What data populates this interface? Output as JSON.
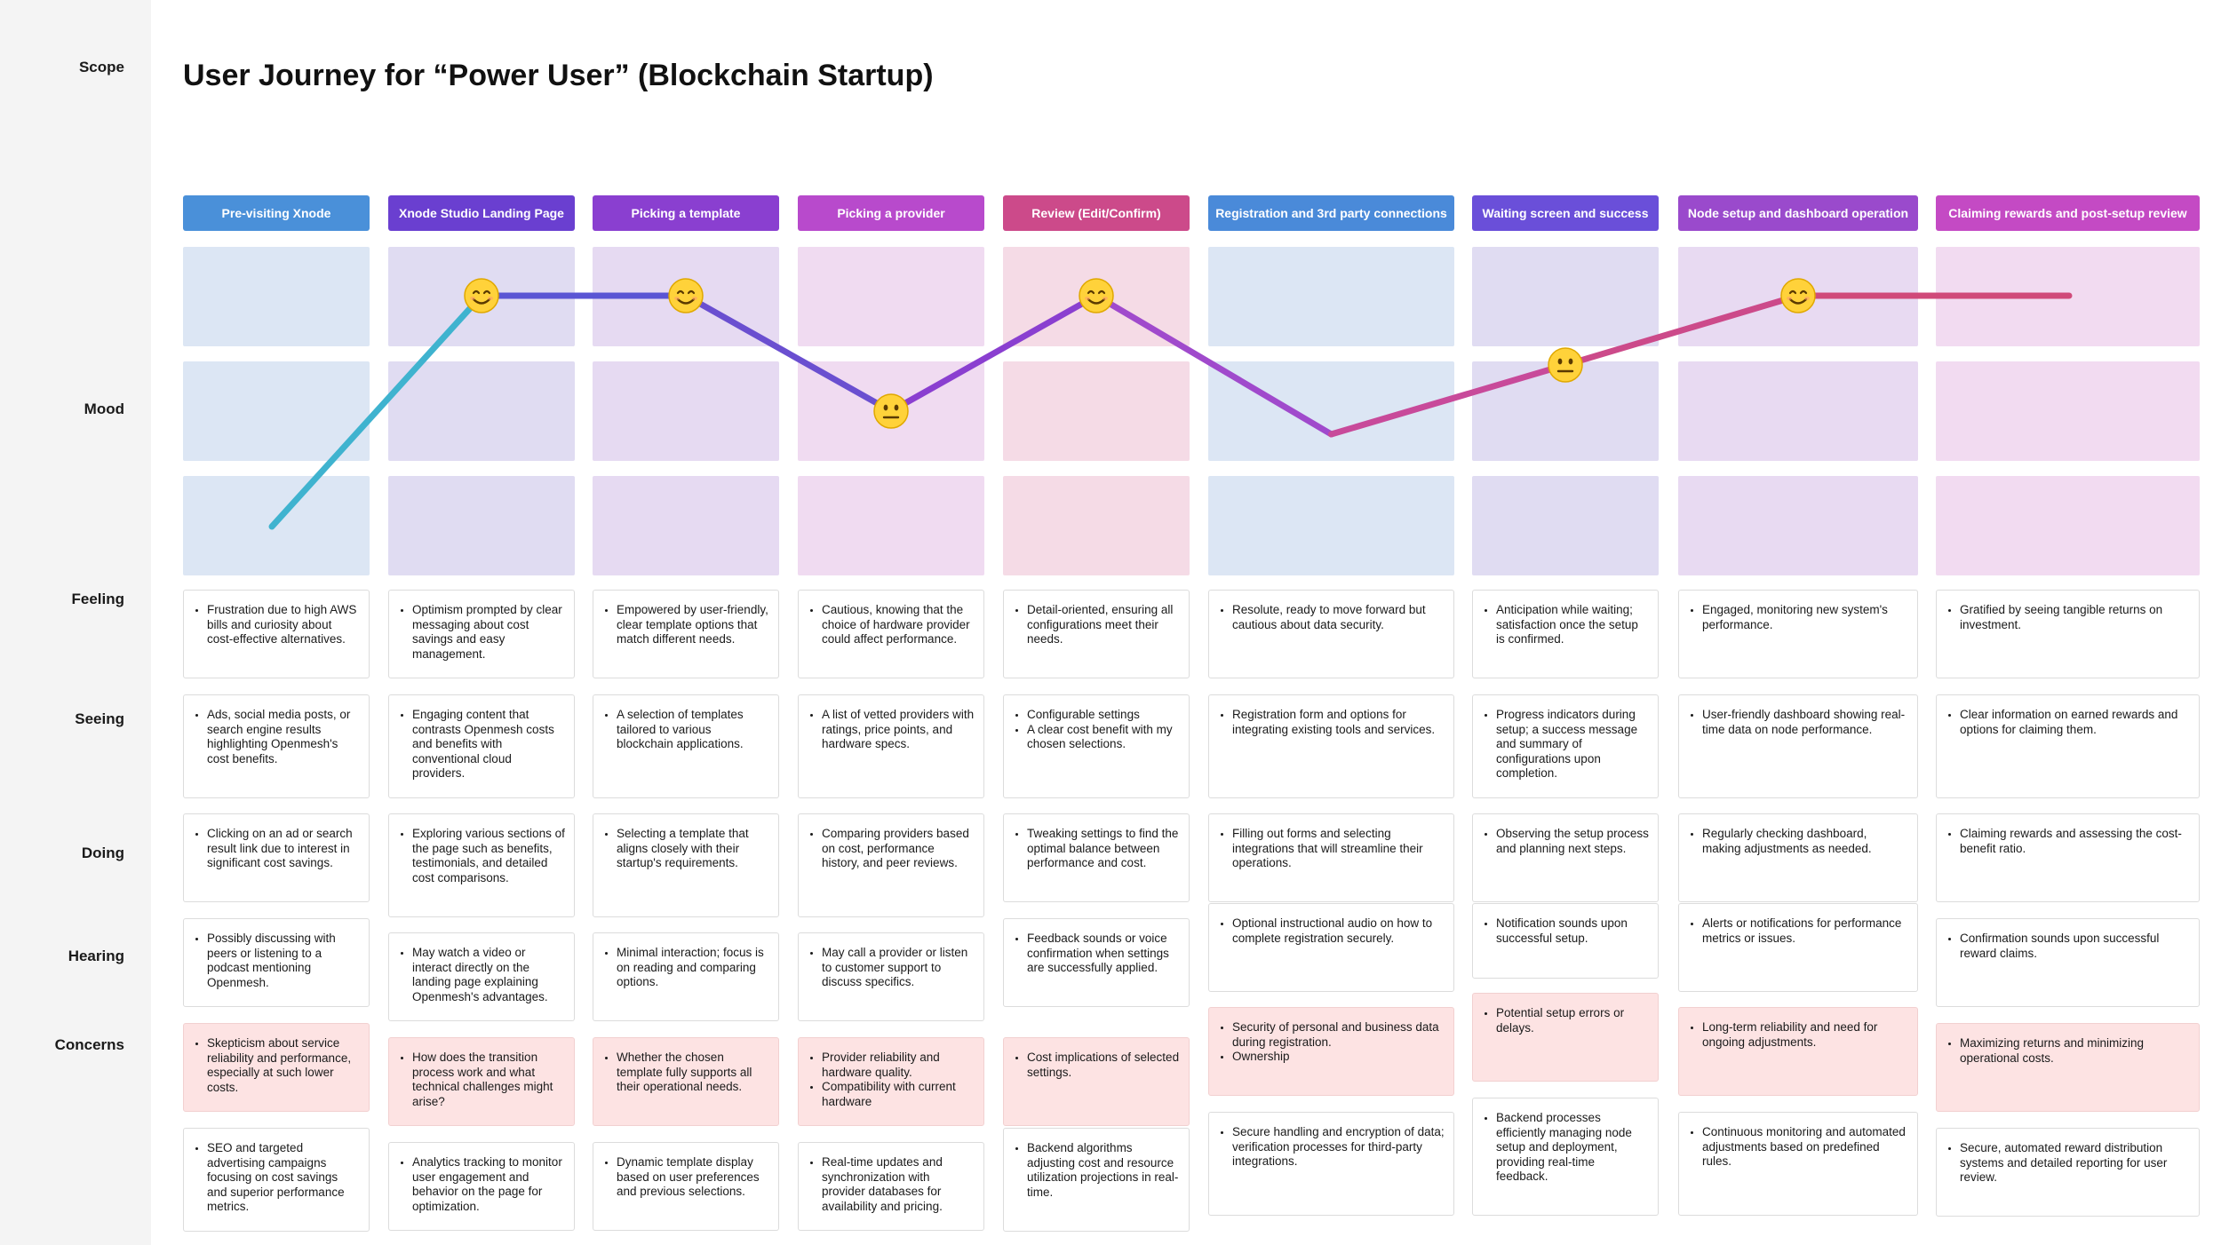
{
  "title": "User Journey for “Power User” (Blockchain Startup)",
  "row_labels": {
    "scope": "Scope",
    "mood": "Mood",
    "feeling": "Feeling",
    "seeing": "Seeing",
    "doing": "Doing",
    "hearing": "Hearing",
    "concerns": "Concerns"
  },
  "phases": [
    {
      "label": "Pre-visiting Xnode",
      "color": "#4a90d9",
      "band_color": "#dce6f4",
      "mood": 0,
      "feeling": [
        "Frustration due to high AWS bills and curiosity about cost-effective alternatives."
      ],
      "seeing": [
        "Ads, social media posts, or search engine results highlighting Openmesh's cost benefits."
      ],
      "doing": [
        "Clicking on an ad or search result link due to interest in significant cost savings."
      ],
      "hearing": [
        "Possibly discussing with peers or listening to a podcast mentioning Openmesh."
      ],
      "concerns": [
        "Skepticism about service reliability and performance, especially at such lower costs."
      ],
      "backstage": [
        "SEO and targeted advertising campaigns focusing on cost savings and superior performance metrics."
      ]
    },
    {
      "label": "Xnode Studio Landing Page",
      "color": "#6a3fd0",
      "band_color": "#e0dcf2",
      "mood": 2,
      "feeling": [
        "Optimism prompted by clear messaging about cost savings and easy management."
      ],
      "seeing": [
        "Engaging content that contrasts Openmesh costs and benefits with conventional cloud providers."
      ],
      "doing": [
        "Exploring various sections of the page such as benefits, testimonials, and detailed cost comparisons."
      ],
      "hearing": [
        "May watch a video or interact directly on the landing page explaining Openmesh's advantages."
      ],
      "concerns": [
        "How does the transition process work and what technical challenges might arise?"
      ],
      "backstage": [
        "Analytics tracking to monitor user engagement and behavior on the page for optimization."
      ]
    },
    {
      "label": "Picking a template",
      "color": "#8a3fd0",
      "band_color": "#e6daf2",
      "mood": 2,
      "feeling": [
        "Empowered by user-friendly, clear template options that match different needs."
      ],
      "seeing": [
        "A selection of templates tailored to various blockchain applications."
      ],
      "doing": [
        "Selecting a template that aligns closely with their startup's requirements."
      ],
      "hearing": [
        "Minimal interaction; focus is on reading and comparing options."
      ],
      "concerns": [
        "Whether the chosen template fully supports all their operational needs."
      ],
      "backstage": [
        "Dynamic template display based on user preferences and previous selections."
      ]
    },
    {
      "label": "Picking a provider",
      "color": "#b84acc",
      "band_color": "#f0dbf1",
      "mood": 1,
      "feeling": [
        "Cautious, knowing that the choice of hardware provider could affect performance."
      ],
      "seeing": [
        "A list of vetted providers with ratings, price points, and hardware specs."
      ],
      "doing": [
        "Comparing providers based on cost, performance history, and peer reviews."
      ],
      "hearing": [
        "May call a provider or listen to customer support to discuss specifics."
      ],
      "concerns": [
        "Provider reliability and hardware quality.",
        "Compatibility with current hardware"
      ],
      "backstage": [
        "Real-time updates and synchronization with provider databases for availability and pricing."
      ]
    },
    {
      "label": "Review (Edit/Confirm)",
      "color": "#cc4a8a",
      "band_color": "#f5dbe6",
      "mood": 2,
      "feeling": [
        "Detail-oriented, ensuring all configurations meet their needs."
      ],
      "seeing": [
        "Configurable settings",
        "A clear cost benefit with my chosen selections."
      ],
      "doing": [
        "Tweaking settings to find the optimal balance between performance and cost."
      ],
      "hearing": [
        "Feedback sounds or voice confirmation when settings are successfully applied."
      ],
      "concerns": [
        "Cost implications of selected settings."
      ],
      "backstage": [
        "Backend algorithms adjusting cost and resource utilization projections in real-time."
      ]
    },
    {
      "label": "Registration and 3rd party connections",
      "color": "#4a8ad9",
      "band_color": "#dce6f4",
      "mood": 0.8,
      "feeling": [
        "Resolute, ready to move forward but cautious about data security."
      ],
      "seeing": [
        "Registration form and options for integrating existing tools and services."
      ],
      "doing": [
        "Filling out forms and selecting integrations that will streamline their operations."
      ],
      "hearing": [
        "Optional instructional audio on how to complete registration securely."
      ],
      "concerns": [
        "Security of personal and business data during registration.",
        "Ownership"
      ],
      "backstage": [
        "Secure handling and encryption of data; verification processes for third-party integrations."
      ]
    },
    {
      "label": "Waiting screen and success",
      "color": "#6a4fd9",
      "band_color": "#e0dcf2",
      "mood": 1.4,
      "feeling": [
        "Anticipation while waiting; satisfaction once the setup is confirmed."
      ],
      "seeing": [
        "Progress indicators during setup; a success message and summary of configurations upon completion."
      ],
      "doing": [
        "Observing the setup process and planning next steps."
      ],
      "hearing": [
        "Notification sounds upon successful setup."
      ],
      "concerns": [
        "Potential setup errors or delays."
      ],
      "backstage": [
        "Backend processes efficiently managing node setup and deployment, providing real-time feedback."
      ]
    },
    {
      "label": "Node setup and dashboard operation",
      "color": "#9a4acc",
      "band_color": "#e8daf2",
      "mood": 2,
      "feeling": [
        "Engaged, monitoring new system's performance."
      ],
      "seeing": [
        "User-friendly dashboard showing real-time data on node performance."
      ],
      "doing": [
        "Regularly checking dashboard, making adjustments as needed."
      ],
      "hearing": [
        "Alerts or notifications for performance metrics or issues."
      ],
      "concerns": [
        "Long-term reliability and need for ongoing adjustments."
      ],
      "backstage": [
        "Continuous monitoring and automated adjustments based on predefined rules."
      ]
    },
    {
      "label": "Claiming rewards and post-setup review",
      "color": "#c44ac4",
      "band_color": "#f2dbf1",
      "mood": 2,
      "feeling": [
        "Gratified by seeing tangible returns on investment."
      ],
      "seeing": [
        "Clear information on earned rewards and options for claiming them."
      ],
      "doing": [
        "Claiming rewards and assessing the cost-benefit ratio."
      ],
      "hearing": [
        "Confirmation sounds upon successful reward claims."
      ],
      "concerns": [
        "Maximizing returns and minimizing operational costs."
      ],
      "backstage": [
        "Secure, automated reward distribution systems and detailed reporting for user review."
      ]
    }
  ],
  "mood_line_colors": [
    "#3fb3cf",
    "#6a4fd0",
    "#a04acc",
    "#c84a9a",
    "#cc4a7a"
  ],
  "emoji_names": [
    "smiling-face-icon",
    "neutral-face-icon"
  ]
}
